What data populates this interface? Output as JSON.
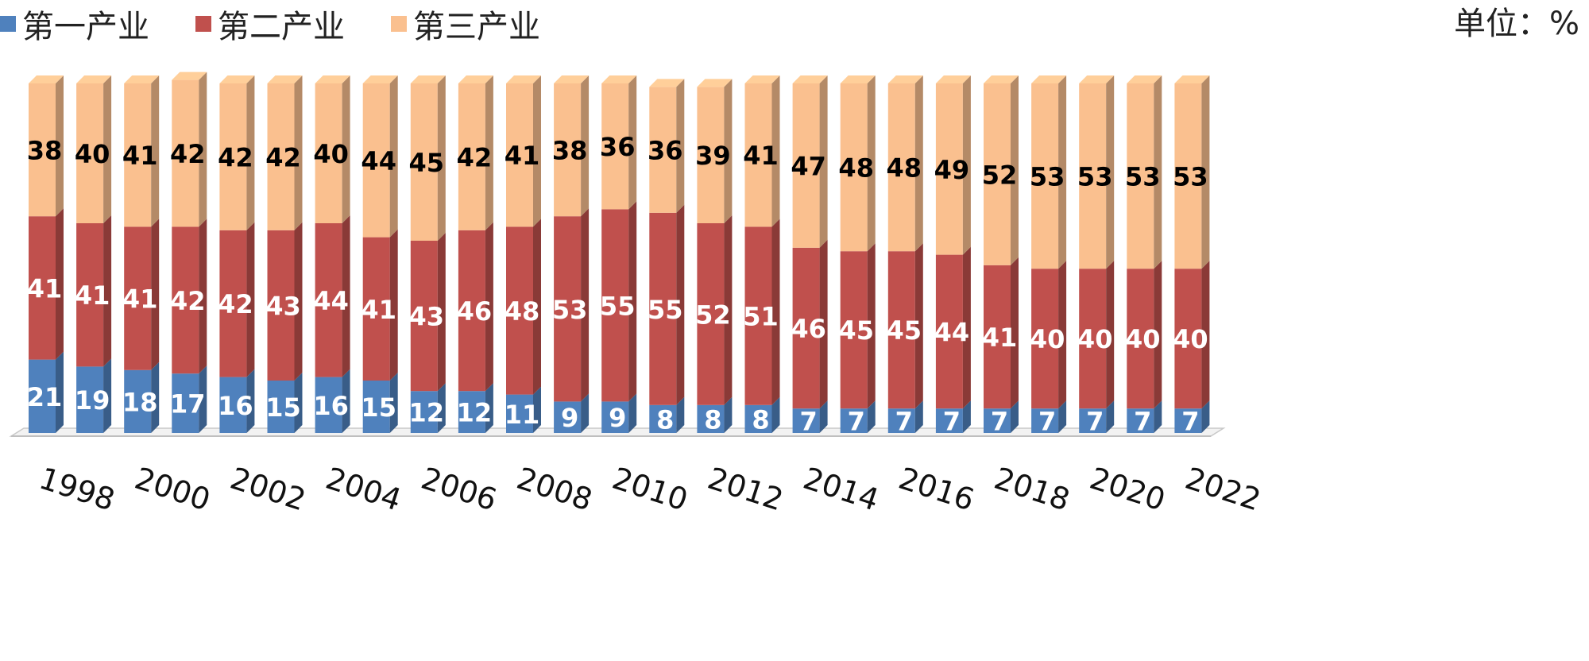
{
  "legend": {
    "items": [
      {
        "label": "第一产业",
        "color": "#4f81bd"
      },
      {
        "label": "第二产业",
        "color": "#c0504d"
      },
      {
        "label": "第三产业",
        "color": "#fac08f"
      }
    ]
  },
  "unit_label": "单位：%",
  "chart_data": {
    "type": "bar",
    "stacked": true,
    "categories": [
      "1998",
      "1999",
      "2000",
      "2001",
      "2002",
      "2003",
      "2004",
      "2005",
      "2006",
      "2007",
      "2008",
      "2009",
      "2010",
      "2011",
      "2012",
      "2013",
      "2014",
      "2015",
      "2016",
      "2017",
      "2018",
      "2019",
      "2020",
      "2021",
      "2022"
    ],
    "tick_labels": [
      "1998",
      "2000",
      "2002",
      "2004",
      "2006",
      "2008",
      "2010",
      "2012",
      "2014",
      "2016",
      "2018",
      "2020",
      "2022"
    ],
    "series": [
      {
        "name": "第一产业",
        "color": "#4f81bd",
        "label_color": "#ffffff",
        "values": [
          21,
          19,
          18,
          17,
          16,
          15,
          16,
          15,
          12,
          12,
          11,
          9,
          9,
          8,
          8,
          8,
          7,
          7,
          7,
          7,
          7,
          7,
          7,
          7,
          7
        ]
      },
      {
        "name": "第二产业",
        "color": "#c0504d",
        "label_color": "#ffffff",
        "values": [
          41,
          41,
          41,
          42,
          42,
          43,
          44,
          41,
          43,
          46,
          48,
          53,
          55,
          55,
          52,
          51,
          46,
          45,
          45,
          44,
          41,
          40,
          40,
          40,
          40
        ]
      },
      {
        "name": "第三产业",
        "color": "#fac08f",
        "label_color": "#000000",
        "values": [
          38,
          40,
          41,
          42,
          42,
          42,
          40,
          44,
          45,
          42,
          41,
          38,
          36,
          36,
          39,
          41,
          47,
          48,
          48,
          49,
          52,
          53,
          53,
          53,
          53
        ]
      }
    ],
    "ylim": [
      0,
      100
    ],
    "legend_position": "top-left",
    "style": "3d-stacked-column",
    "grid": false
  }
}
